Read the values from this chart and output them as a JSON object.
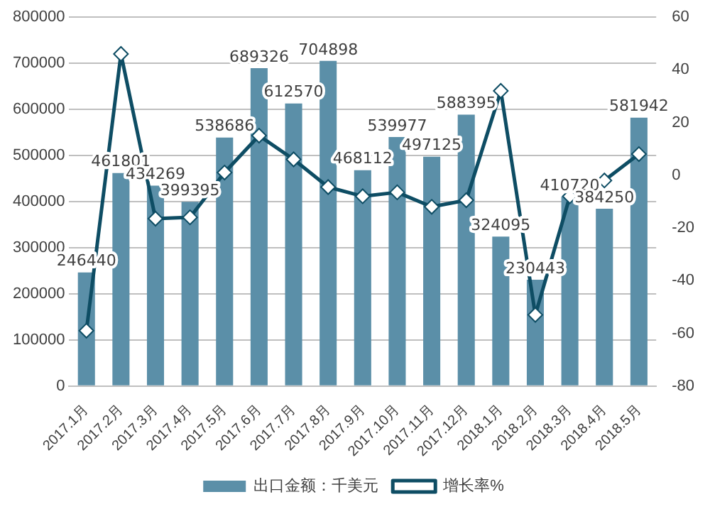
{
  "chart_data": {
    "type": "bar",
    "categories": [
      "2017.1月",
      "2017.2月",
      "2017.3月",
      "2017.4月",
      "2017.5月",
      "2017.6月",
      "2017.7月",
      "2017.8月",
      "2017.9月",
      "2017.10月",
      "2017.11月",
      "2017.12月",
      "2018.1月",
      "2018.2月",
      "2018.3月",
      "2018.4月",
      "2018.5月"
    ],
    "series": [
      {
        "name": "出口金额：千美元",
        "color": "#5b8fa8",
        "values": [
          246440,
          461801,
          434269,
          399395,
          538686,
          689326,
          612570,
          704898,
          468112,
          539977,
          497125,
          588395,
          324095,
          230443,
          410720,
          384250,
          581942
        ],
        "value_labels": [
          "246440",
          "461801",
          "434269",
          "399395",
          "538686",
          "689326",
          "612570",
          "704898",
          "468112",
          "539977",
          "497125",
          "588395",
          "324095",
          "230443",
          "410720",
          "384250",
          "581942"
        ]
      },
      {
        "name": "增长率%",
        "type": "line",
        "axis": "y2",
        "color": "#0e4d64",
        "values": [
          -59,
          46,
          -16.5,
          -16,
          1,
          15,
          6,
          -4.5,
          -8,
          -6.5,
          -12,
          -9.5,
          32,
          -53,
          -8,
          -2,
          8
        ]
      }
    ],
    "ylim": [
      0,
      800000
    ],
    "yticks": [
      0,
      100000,
      200000,
      300000,
      400000,
      500000,
      600000,
      700000,
      800000
    ],
    "y2lim": [
      -80,
      60
    ],
    "y2ticks": [
      -80,
      -60,
      -40,
      -20,
      0,
      20,
      40,
      60
    ],
    "grid": "y",
    "legend": "bottom",
    "marker": "diamond"
  }
}
